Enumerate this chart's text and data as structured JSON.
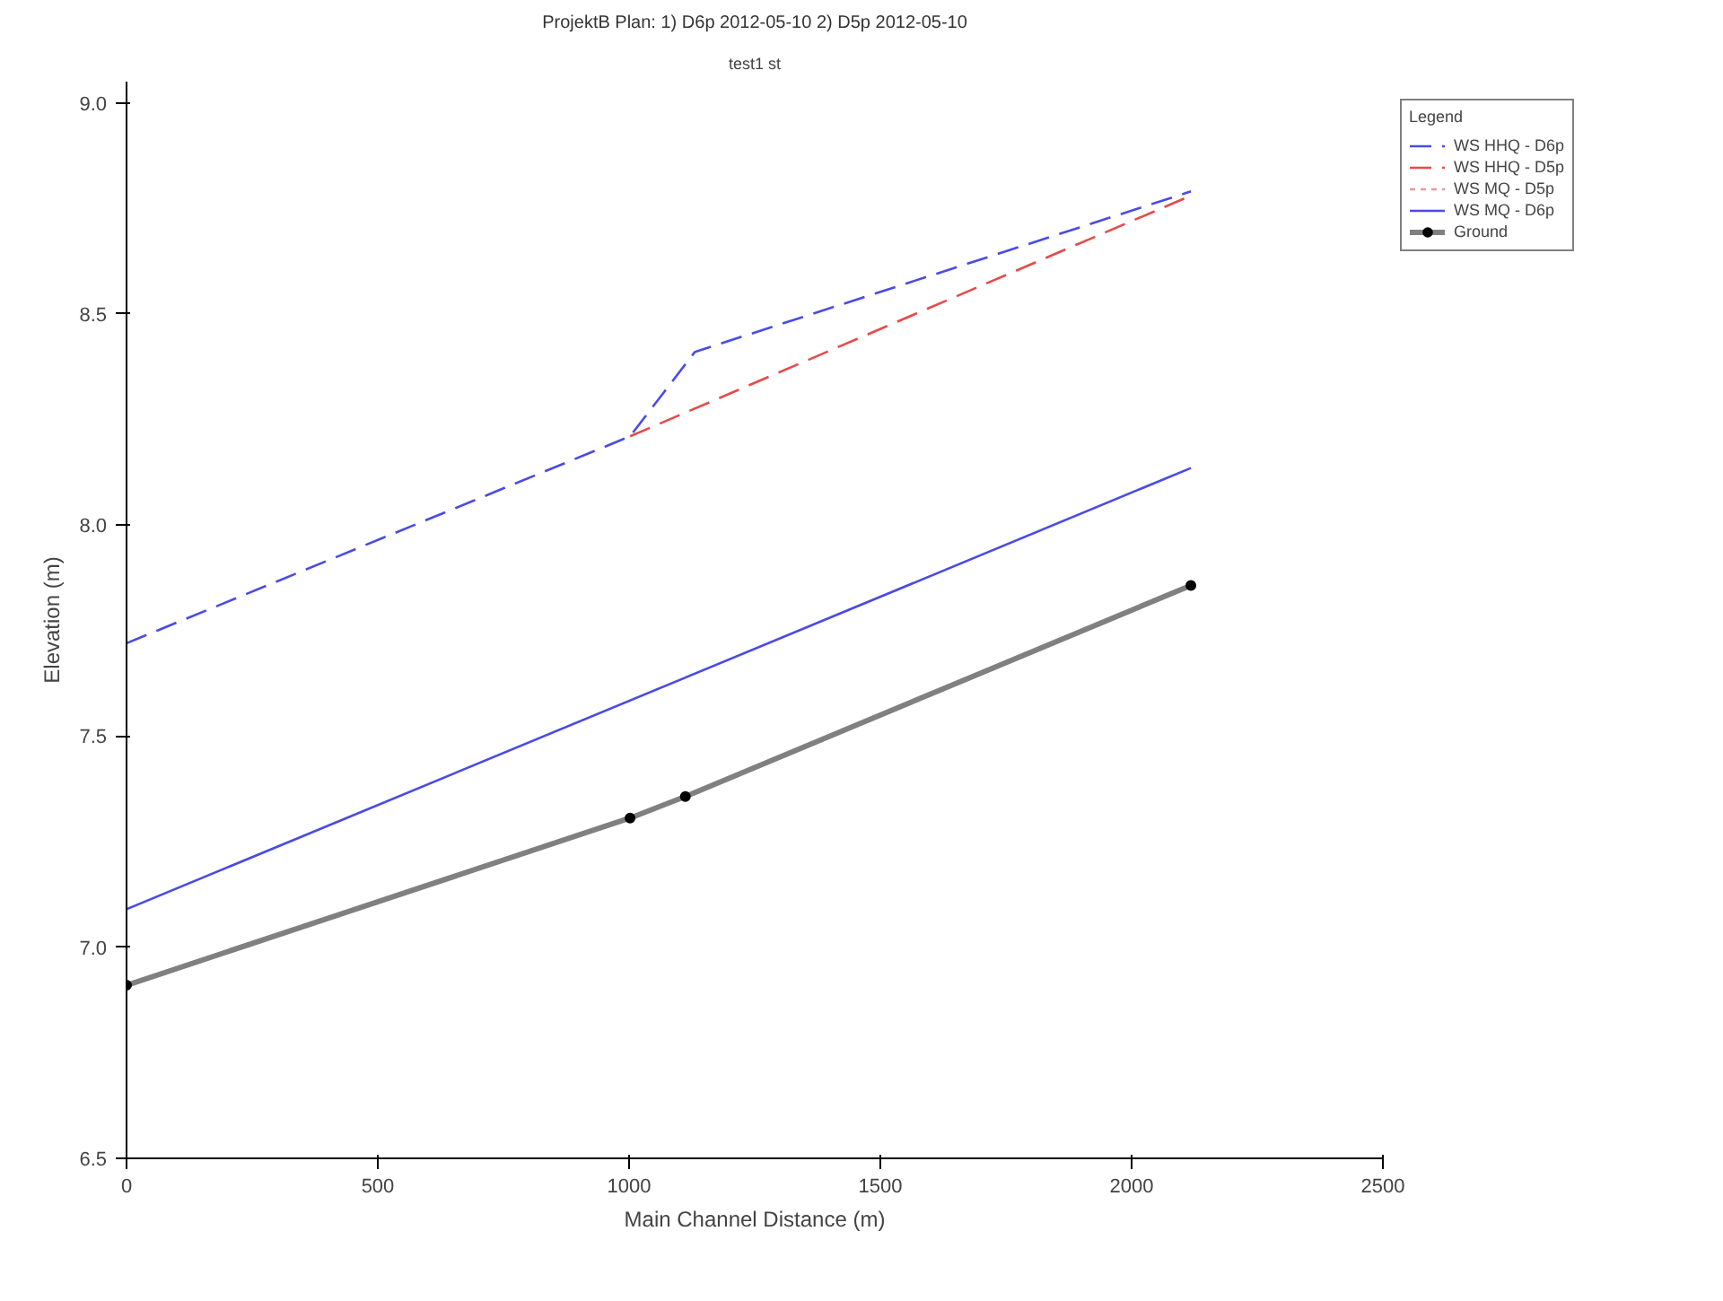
{
  "chart_data": {
    "type": "line",
    "title": "ProjektB Plan: 1) D6p 2012-05-10 2) D5p 2012-05-10",
    "xlabel": "Main Channel Distance (m)",
    "ylabel": "Elevation (m)",
    "legend_title": "Legend",
    "xlim": [
      0,
      2500
    ],
    "ylim": [
      6.5,
      9.05
    ],
    "xticks": [
      0,
      500,
      1000,
      1500,
      2000,
      2500
    ],
    "yticks": [
      6.5,
      {
        "value": 7,
        "label": "7.0"
      },
      7.5,
      {
        "value": 8,
        "label": "8.0"
      },
      8.5,
      {
        "value": 9,
        "label": "9.0"
      }
    ],
    "grid": false,
    "legend": "top right",
    "annotations": [
      "test1 st"
    ],
    "series": [
      {
        "name": "WS HHQ - D6p",
        "color": "#4a4ae8",
        "line_style": "dashed",
        "marker": "none",
        "x": [
          0,
          1002,
          1131,
          2118
        ],
        "values": [
          7.72,
          8.21,
          8.41,
          8.79
        ]
      },
      {
        "name": "WS HHQ - D5p",
        "color": "#e84a4a",
        "line_style": "dashed",
        "marker": "none",
        "x": [
          1002,
          2118
        ],
        "values": [
          8.21,
          8.78
        ]
      },
      {
        "name": "WS MQ - D5p",
        "color": "#e89a9a",
        "line_style": "dotted",
        "marker": "none"
      },
      {
        "name": "WS MQ - D6p",
        "color": "#4a4ae8",
        "line_style": "solid",
        "marker": "none",
        "x": [
          0,
          2118
        ],
        "values": [
          7.09,
          8.135
        ]
      },
      {
        "name": "Ground",
        "color": "#808080",
        "line_style": "solid",
        "marker": "circle",
        "x": [
          0,
          1002,
          1112,
          2118
        ],
        "values": [
          6.91,
          7.306,
          7.357,
          7.857
        ]
      }
    ]
  }
}
